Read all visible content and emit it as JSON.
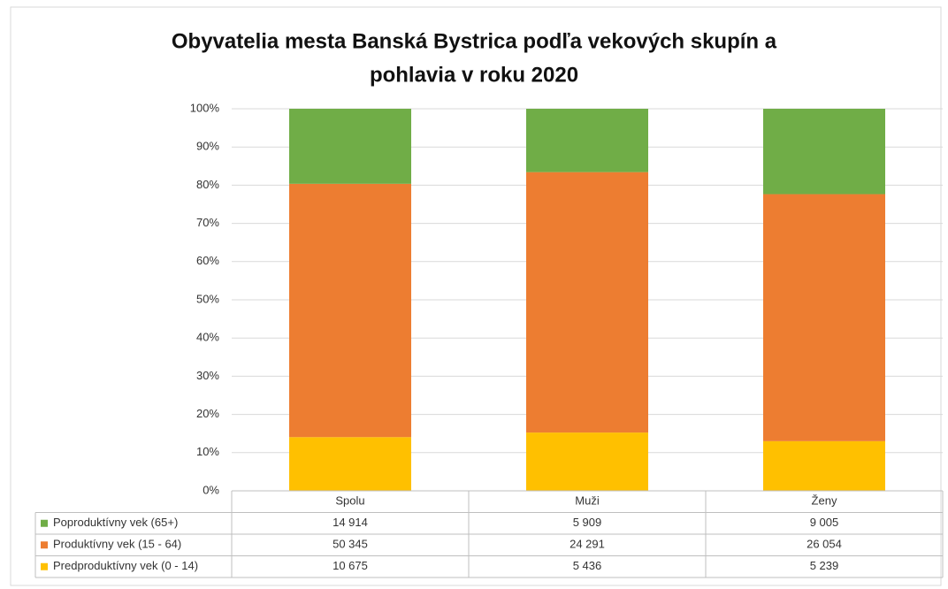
{
  "chart_data": {
    "type": "bar",
    "stacked": "percent",
    "title": "Obyvatelia mesta Banská Bystrica podľa vekových skupín a pohlavia v roku 2020",
    "categories": [
      "Spolu",
      "Muži",
      "Ženy"
    ],
    "series": [
      {
        "name": "Poproduktívny vek (65+)",
        "color": "#70ad47",
        "values": [
          14914,
          5909,
          9005
        ],
        "value_labels": [
          "14 914",
          "5 909",
          "9 005"
        ]
      },
      {
        "name": "Produktívny vek (15 - 64)",
        "color": "#ed7d31",
        "values": [
          50345,
          24291,
          26054
        ],
        "value_labels": [
          "50 345",
          "24 291",
          "26 054"
        ]
      },
      {
        "name": "Predproduktívny vek (0 - 14)",
        "color": "#ffc000",
        "values": [
          10675,
          5436,
          5239
        ],
        "value_labels": [
          "10 675",
          "5 436",
          "5 239"
        ]
      }
    ],
    "ylim": [
      0,
      100
    ],
    "yticks": [
      {
        "value": 0,
        "label": "0%"
      },
      {
        "value": 10,
        "label": "10%"
      },
      {
        "value": 20,
        "label": "20%"
      },
      {
        "value": 30,
        "label": "30%"
      },
      {
        "value": 40,
        "label": "40%"
      },
      {
        "value": 50,
        "label": "50%"
      },
      {
        "value": 60,
        "label": "60%"
      },
      {
        "value": 70,
        "label": "70%"
      },
      {
        "value": 80,
        "label": "80%"
      },
      {
        "value": 90,
        "label": "90%"
      },
      {
        "value": 100,
        "label": "100%"
      }
    ],
    "grid": true
  }
}
